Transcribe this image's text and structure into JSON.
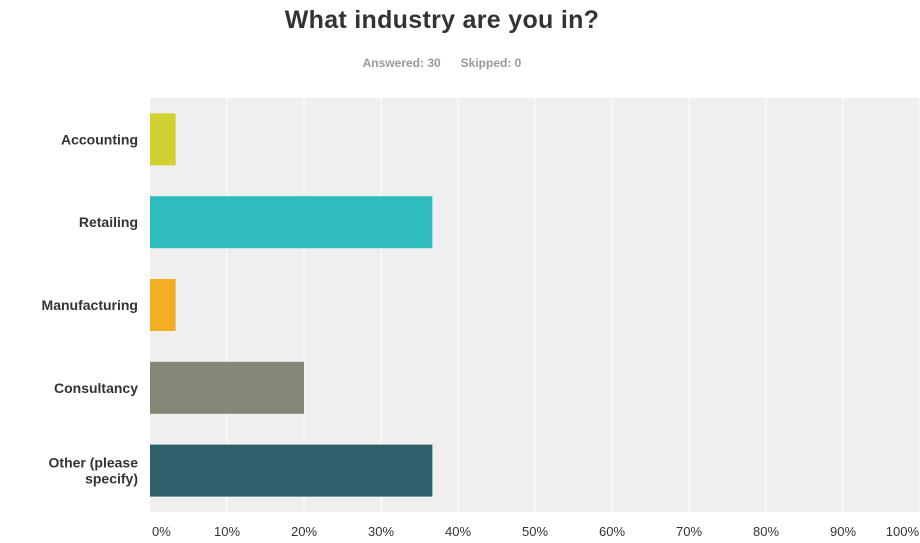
{
  "title": "What industry are you in?",
  "stats": {
    "answered_label": "Answered: 30",
    "skipped_label": "Skipped: 0"
  },
  "colors": {
    "plot_background": "#efefef",
    "gridline": "#ffffff",
    "text": "#333333",
    "subtext": "#999999"
  },
  "chart_data": {
    "type": "bar",
    "orientation": "horizontal",
    "categories": [
      "Accounting",
      "Retailing",
      "Manufacturing",
      "Consultancy",
      "Other (please specify)"
    ],
    "category_lines": [
      [
        "Accounting"
      ],
      [
        "Retailing"
      ],
      [
        "Manufacturing"
      ],
      [
        "Consultancy"
      ],
      [
        "Other (please",
        "specify)"
      ]
    ],
    "values": [
      3.33,
      36.67,
      3.33,
      20.0,
      36.67
    ],
    "bar_colors": [
      "#d0d030",
      "#2fbdbd",
      "#f4ae24",
      "#878777",
      "#2f5f6b"
    ],
    "xlim": [
      0,
      100
    ],
    "xticks": [
      "0%",
      "10%",
      "20%",
      "30%",
      "40%",
      "50%",
      "60%",
      "70%",
      "80%",
      "90%",
      "100%"
    ],
    "grid": true,
    "legend": false
  }
}
